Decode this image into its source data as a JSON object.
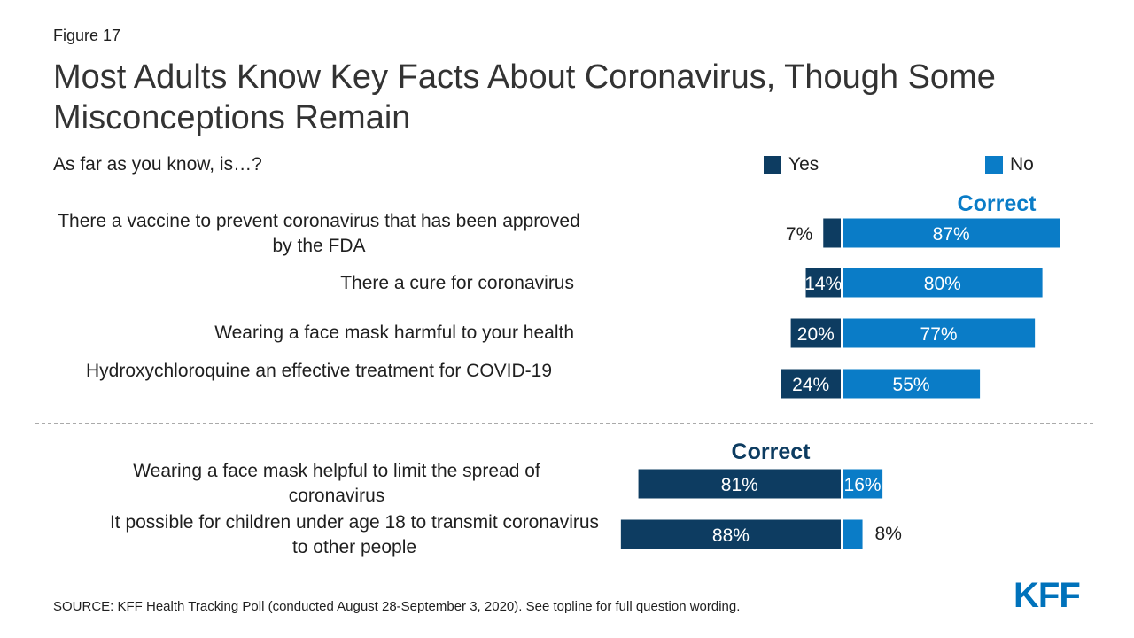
{
  "header": {
    "figure_label": "Figure 17",
    "title": "Most Adults Know Key Facts About Coronavirus, Though Some Misconceptions Remain",
    "question": "As far as you know, is…?"
  },
  "footer": {
    "source": "SOURCE: KFF Health Tracking Poll (conducted August 28-September 3, 2020). See topline for full question wording.",
    "logo": "KFF"
  },
  "colors": {
    "yes": "#0d3c61",
    "no": "#0a7cc7",
    "correct_no": "#0a7cc7",
    "correct_yes": "#0d3c61"
  },
  "chart_data": {
    "type": "bar",
    "orientation": "horizontal-diverging",
    "legend": {
      "entries": [
        "Yes",
        "No"
      ],
      "placement": "top-right"
    },
    "groups": [
      {
        "correct_label": "Correct",
        "correct_side": "No",
        "categories": [
          "There a vaccine to prevent coronavirus that has been approved by the FDA",
          "There a cure for coronavirus",
          "Wearing a face mask harmful to your health",
          "Hydroxychloroquine an effective treatment for COVID-19"
        ],
        "series": [
          {
            "name": "Yes",
            "values": [
              7,
              14,
              20,
              24
            ],
            "labels": [
              "7%",
              "14%",
              "20%",
              "24%"
            ]
          },
          {
            "name": "No",
            "values": [
              87,
              80,
              77,
              55
            ],
            "labels": [
              "87%",
              "80%",
              "77%",
              "55%"
            ]
          }
        ]
      },
      {
        "correct_label": "Correct",
        "correct_side": "Yes",
        "categories": [
          "Wearing a face mask helpful to limit the spread of coronavirus",
          "It possible for children under age 18 to transmit coronavirus to other people"
        ],
        "series": [
          {
            "name": "Yes",
            "values": [
              81,
              88
            ],
            "labels": [
              "81%",
              "88%"
            ]
          },
          {
            "name": "No",
            "values": [
              16,
              8
            ],
            "labels": [
              "16%",
              "8%"
            ]
          }
        ]
      }
    ]
  }
}
